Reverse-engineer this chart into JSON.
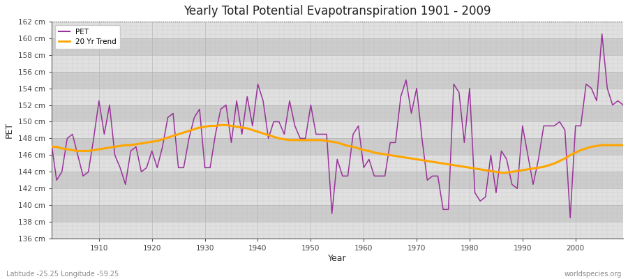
{
  "title": "Yearly Total Potential Evapotranspiration 1901 - 2009",
  "xlabel": "Year",
  "ylabel": "PET",
  "lat_lon_label": "Latitude -25.25 Longitude -59.25",
  "watermark": "worldspecies.org",
  "pet_color": "#993399",
  "trend_color": "#FFA500",
  "bg_color": "#FFFFFF",
  "plot_bg_color": "#E8E8E8",
  "band_color_light": "#E0E0E0",
  "band_color_dark": "#CCCCCC",
  "ylim": [
    136,
    162
  ],
  "ytick_step": 2,
  "dotted_line_y": 162,
  "years": [
    1901,
    1902,
    1903,
    1904,
    1905,
    1906,
    1907,
    1908,
    1909,
    1910,
    1911,
    1912,
    1913,
    1914,
    1915,
    1916,
    1917,
    1918,
    1919,
    1920,
    1921,
    1922,
    1923,
    1924,
    1925,
    1926,
    1927,
    1928,
    1929,
    1930,
    1931,
    1932,
    1933,
    1934,
    1935,
    1936,
    1937,
    1938,
    1939,
    1940,
    1941,
    1942,
    1943,
    1944,
    1945,
    1946,
    1947,
    1948,
    1949,
    1950,
    1951,
    1952,
    1953,
    1954,
    1955,
    1956,
    1957,
    1958,
    1959,
    1960,
    1961,
    1962,
    1963,
    1964,
    1965,
    1966,
    1967,
    1968,
    1969,
    1970,
    1971,
    1972,
    1973,
    1974,
    1975,
    1976,
    1977,
    1978,
    1979,
    1980,
    1981,
    1982,
    1983,
    1984,
    1985,
    1986,
    1987,
    1988,
    1989,
    1990,
    1991,
    1992,
    1993,
    1994,
    1995,
    1996,
    1997,
    1998,
    1999,
    2000,
    2001,
    2002,
    2003,
    2004,
    2005,
    2006,
    2007,
    2008,
    2009
  ],
  "pet_values": [
    147.5,
    143.0,
    144.0,
    148.0,
    148.5,
    146.0,
    143.5,
    144.0,
    148.0,
    152.5,
    148.5,
    152.0,
    146.0,
    144.5,
    142.5,
    146.5,
    147.0,
    144.0,
    144.5,
    146.5,
    144.5,
    147.0,
    150.5,
    151.0,
    144.5,
    144.5,
    148.0,
    150.5,
    151.5,
    144.5,
    144.5,
    148.5,
    151.5,
    152.0,
    147.5,
    152.5,
    148.5,
    153.0,
    149.5,
    154.5,
    152.5,
    148.0,
    150.0,
    150.0,
    148.5,
    152.5,
    149.5,
    148.0,
    148.0,
    152.0,
    148.5,
    148.5,
    148.5,
    139.0,
    145.5,
    143.5,
    143.5,
    148.5,
    149.5,
    144.5,
    145.5,
    143.5,
    143.5,
    143.5,
    147.5,
    147.5,
    153.0,
    155.0,
    151.0,
    154.0,
    148.0,
    143.0,
    143.5,
    143.5,
    139.5,
    139.5,
    154.5,
    153.5,
    147.5,
    154.0,
    141.5,
    140.5,
    141.0,
    146.0,
    141.5,
    146.5,
    145.5,
    142.5,
    142.0,
    149.5,
    146.0,
    142.5,
    145.5,
    149.5,
    149.5,
    149.5,
    150.0,
    149.0,
    138.5,
    149.5,
    149.5,
    154.5,
    154.0,
    152.5,
    160.5,
    154.0,
    152.0,
    152.5,
    152.0
  ],
  "trend_values": [
    147.0,
    147.0,
    146.8,
    146.7,
    146.6,
    146.5,
    146.5,
    146.5,
    146.6,
    146.7,
    146.8,
    146.9,
    147.0,
    147.1,
    147.2,
    147.2,
    147.3,
    147.4,
    147.5,
    147.6,
    147.7,
    147.9,
    148.1,
    148.3,
    148.5,
    148.7,
    148.9,
    149.1,
    149.3,
    149.4,
    149.5,
    149.5,
    149.6,
    149.6,
    149.5,
    149.4,
    149.3,
    149.2,
    149.0,
    148.8,
    148.6,
    148.4,
    148.2,
    148.0,
    147.9,
    147.8,
    147.8,
    147.8,
    147.8,
    147.8,
    147.8,
    147.8,
    147.7,
    147.6,
    147.5,
    147.3,
    147.1,
    147.0,
    146.8,
    146.6,
    146.5,
    146.3,
    146.2,
    146.1,
    146.0,
    145.9,
    145.8,
    145.7,
    145.6,
    145.5,
    145.4,
    145.3,
    145.2,
    145.1,
    145.0,
    144.9,
    144.8,
    144.7,
    144.6,
    144.5,
    144.4,
    144.3,
    144.2,
    144.1,
    144.0,
    143.9,
    143.9,
    144.0,
    144.1,
    144.2,
    144.3,
    144.4,
    144.5,
    144.6,
    144.8,
    145.0,
    145.3,
    145.6,
    146.0,
    146.3,
    146.6,
    146.8,
    147.0,
    147.1,
    147.2,
    147.2,
    147.2,
    147.2,
    147.2
  ]
}
